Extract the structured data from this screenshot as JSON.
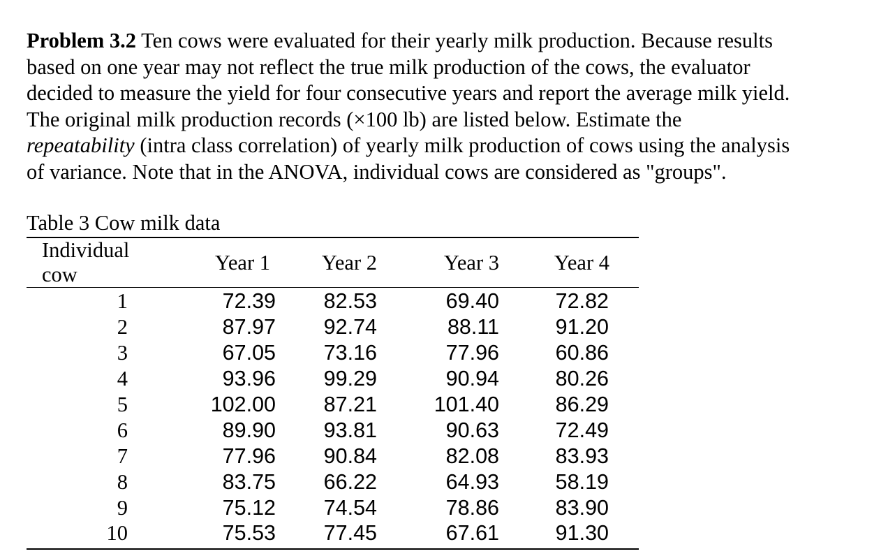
{
  "problem": {
    "label": "Problem 3.2",
    "line1": " Ten cows were evaluated for their yearly milk production. Because results",
    "line2": "based on one year may not reflect the true milk production of the cows, the evaluator",
    "line3": "decided to measure the yield for four consecutive years and report the average milk yield.",
    "line4": "The original milk production records (×100 lb) are listed below. Estimate the",
    "line5_italic": "repeatability",
    "line5_rest": " (intra class correlation) of yearly milk production of cows using the analysis",
    "line6": "of variance. Note that in the ANOVA, individual cows are considered as \"groups\"."
  },
  "table": {
    "caption": "Table 3 Cow milk data",
    "headers": [
      "Individual cow",
      "Year 1",
      "Year 2",
      "Year 3",
      "Year 4"
    ],
    "rows": [
      [
        "1",
        "72.39",
        "82.53",
        "69.40",
        "72.82"
      ],
      [
        "2",
        "87.97",
        "92.74",
        "88.11",
        "91.20"
      ],
      [
        "3",
        "67.05",
        "73.16",
        "77.96",
        "60.86"
      ],
      [
        "4",
        "93.96",
        "99.29",
        "90.94",
        "80.26"
      ],
      [
        "5",
        "102.00",
        "87.21",
        "101.40",
        "86.29"
      ],
      [
        "6",
        "89.90",
        "93.81",
        "90.63",
        "72.49"
      ],
      [
        "7",
        "77.96",
        "90.84",
        "82.08",
        "83.93"
      ],
      [
        "8",
        "83.75",
        "66.22",
        "64.93",
        "58.19"
      ],
      [
        "9",
        "75.12",
        "74.54",
        "78.86",
        "83.90"
      ],
      [
        "10",
        "75.53",
        "77.45",
        "67.61",
        "91.30"
      ]
    ]
  }
}
